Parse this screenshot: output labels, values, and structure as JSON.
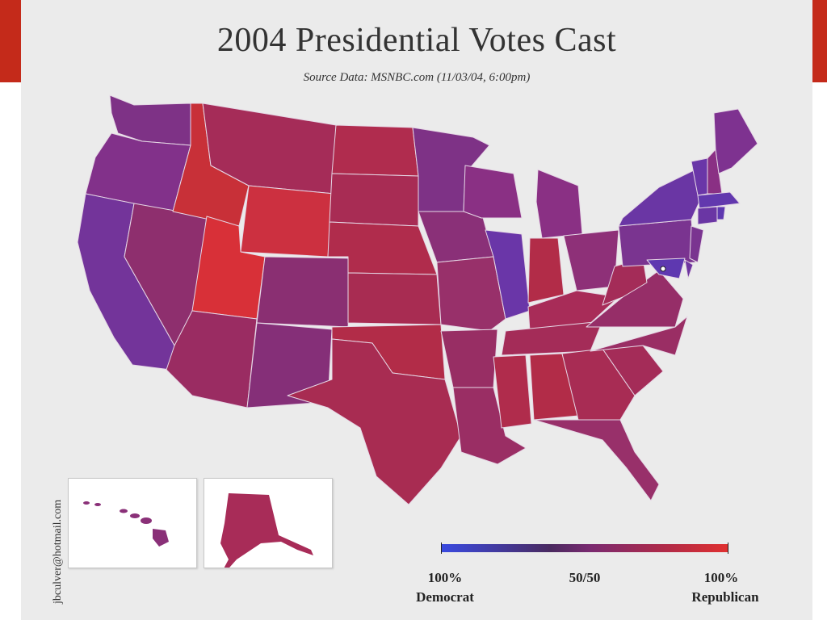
{
  "title": "2004 Presidential Votes Cast",
  "subtitle": "Source Data: MSNBC.com (11/03/04, 6:00pm)",
  "credit": "jbculver@hotmail.com",
  "legend": {
    "left_pct": "100%",
    "left_label": "Democrat",
    "mid_pct": "50/50",
    "right_pct": "100%",
    "right_label": "Republican",
    "colors": {
      "democrat": "#3a4ae0",
      "even": "#7a2a70",
      "republican": "#e03030"
    }
  },
  "map_colors": {
    "purple": "#8a3080",
    "blue_purple": "#6a36a0",
    "magenta": "#a02a62",
    "red": "#c8303a",
    "bright_red": "#d83038"
  }
}
